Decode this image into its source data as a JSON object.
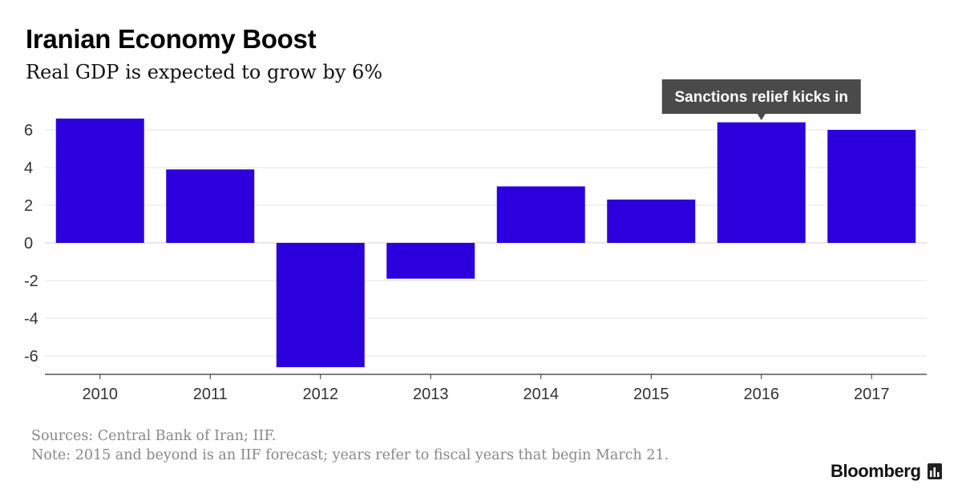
{
  "header": {
    "title": "Iranian Economy Boost",
    "subtitle": "Real GDP is expected to grow by 6%"
  },
  "footer": {
    "source": "Sources: Central Bank of Iran; IIF.",
    "note": "Note: 2015 and beyond is an IIF forecast; years refer to fiscal years that begin March 21.",
    "brand": "Bloomberg"
  },
  "chart_data": {
    "type": "bar",
    "title": "Iranian Economy Boost",
    "subtitle": "Real GDP is expected to grow by 6%",
    "categories": [
      "2010",
      "2011",
      "2012",
      "2013",
      "2014",
      "2015",
      "2016",
      "2017"
    ],
    "values": [
      6.6,
      3.9,
      -6.6,
      -1.9,
      3.0,
      2.3,
      6.4,
      6.0
    ],
    "yticks": [
      6,
      4,
      2,
      0,
      -2,
      -4,
      -6
    ],
    "ylim": [
      -7,
      7.5
    ],
    "xlabel": "",
    "ylabel": "",
    "grid": true,
    "bar_color": "#2b00dd",
    "annotation": {
      "text": "Sanctions relief kicks in",
      "category": "2016",
      "background": "#4a4a4a"
    }
  }
}
